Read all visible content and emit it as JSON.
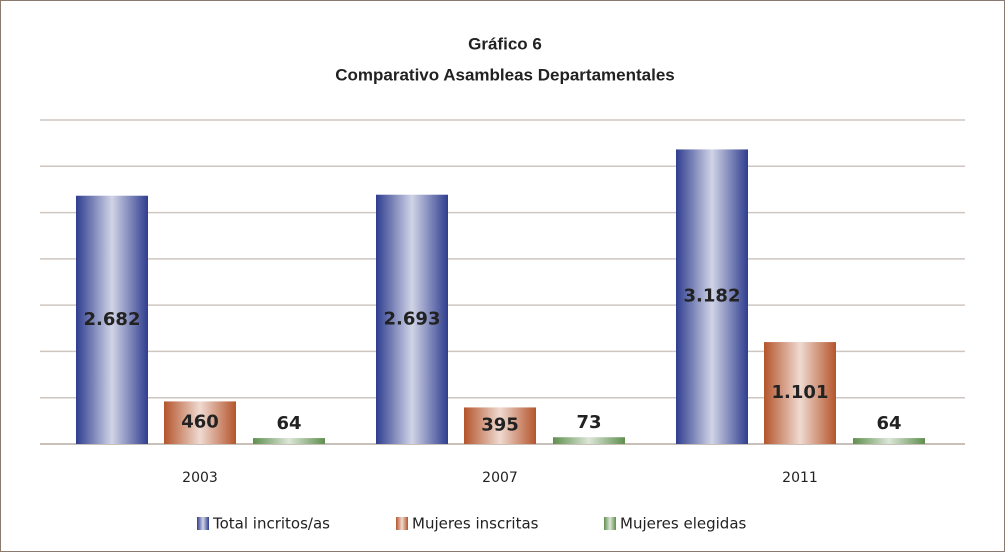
{
  "chart_data": {
    "type": "bar",
    "title": "Gráfico 6",
    "subtitle": "Comparativo Asambleas Departamentales",
    "categories": [
      "2003",
      "2007",
      "2011"
    ],
    "series": [
      {
        "name": "Total incritos/as",
        "color": "#2f3d8f",
        "values": [
          2682,
          2693,
          3182
        ],
        "value_labels": [
          "2.682",
          "2.693",
          "3.182"
        ]
      },
      {
        "name": "Mujeres inscritas",
        "color": "#b4552c",
        "values": [
          460,
          395,
          1101
        ],
        "value_labels": [
          "460",
          "395",
          "1.101"
        ]
      },
      {
        "name": "Mujeres elegidas",
        "color": "#5f8f4e",
        "values": [
          64,
          73,
          64
        ],
        "value_labels": [
          "64",
          "73",
          "64"
        ]
      }
    ],
    "ylim": [
      0,
      3500
    ],
    "yticks": [
      0,
      500,
      1000,
      1500,
      2000,
      2500,
      3000,
      3500
    ],
    "grid": true
  }
}
